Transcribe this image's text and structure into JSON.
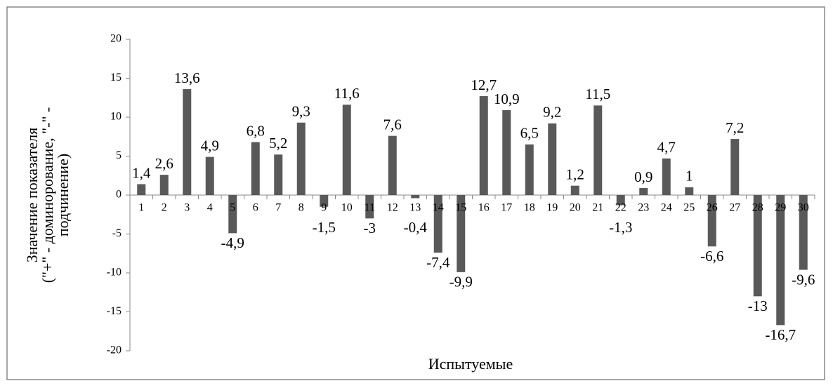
{
  "chart_data": {
    "type": "bar",
    "xlabel": "Испытуемые",
    "ylabel": [
      "Значение показателя",
      "(\"+\" - доминорование, \"-\" -",
      "подчинение)"
    ],
    "categories": [
      "1",
      "2",
      "3",
      "4",
      "5",
      "6",
      "7",
      "8",
      "9",
      "10",
      "11",
      "12",
      "13",
      "14",
      "15",
      "16",
      "17",
      "18",
      "19",
      "20",
      "21",
      "22",
      "23",
      "24",
      "25",
      "26",
      "27",
      "28",
      "29",
      "30"
    ],
    "values": [
      1.4,
      2.6,
      13.6,
      4.9,
      -4.9,
      6.8,
      5.2,
      9.3,
      -1.5,
      11.6,
      -3,
      7.6,
      -0.4,
      -7.4,
      -9.9,
      12.7,
      10.9,
      6.5,
      9.2,
      1.2,
      11.5,
      -1.3,
      0.9,
      4.7,
      1,
      -6.6,
      7.2,
      -13,
      -16.7,
      -9.6
    ],
    "value_labels": [
      "1,4",
      "2,6",
      "13,6",
      "4,9",
      "-4,9",
      "6,8",
      "5,2",
      "9,3",
      "-1,5",
      "11,6",
      "-3",
      "7,6",
      "-0,4",
      "-7,4",
      "-9,9",
      "12,7",
      "10,9",
      "6,5",
      "9,2",
      "1,2",
      "11,5",
      "-1,3",
      "0,9",
      "4,7",
      "1",
      "-6,6",
      "7,2",
      "-13",
      "-16,7",
      "-9,6"
    ],
    "color": "#595959",
    "ylim": [
      -20,
      20
    ],
    "yticks": [
      -20,
      -15,
      -10,
      -5,
      0,
      5,
      10,
      15,
      20
    ],
    "grid": false
  }
}
